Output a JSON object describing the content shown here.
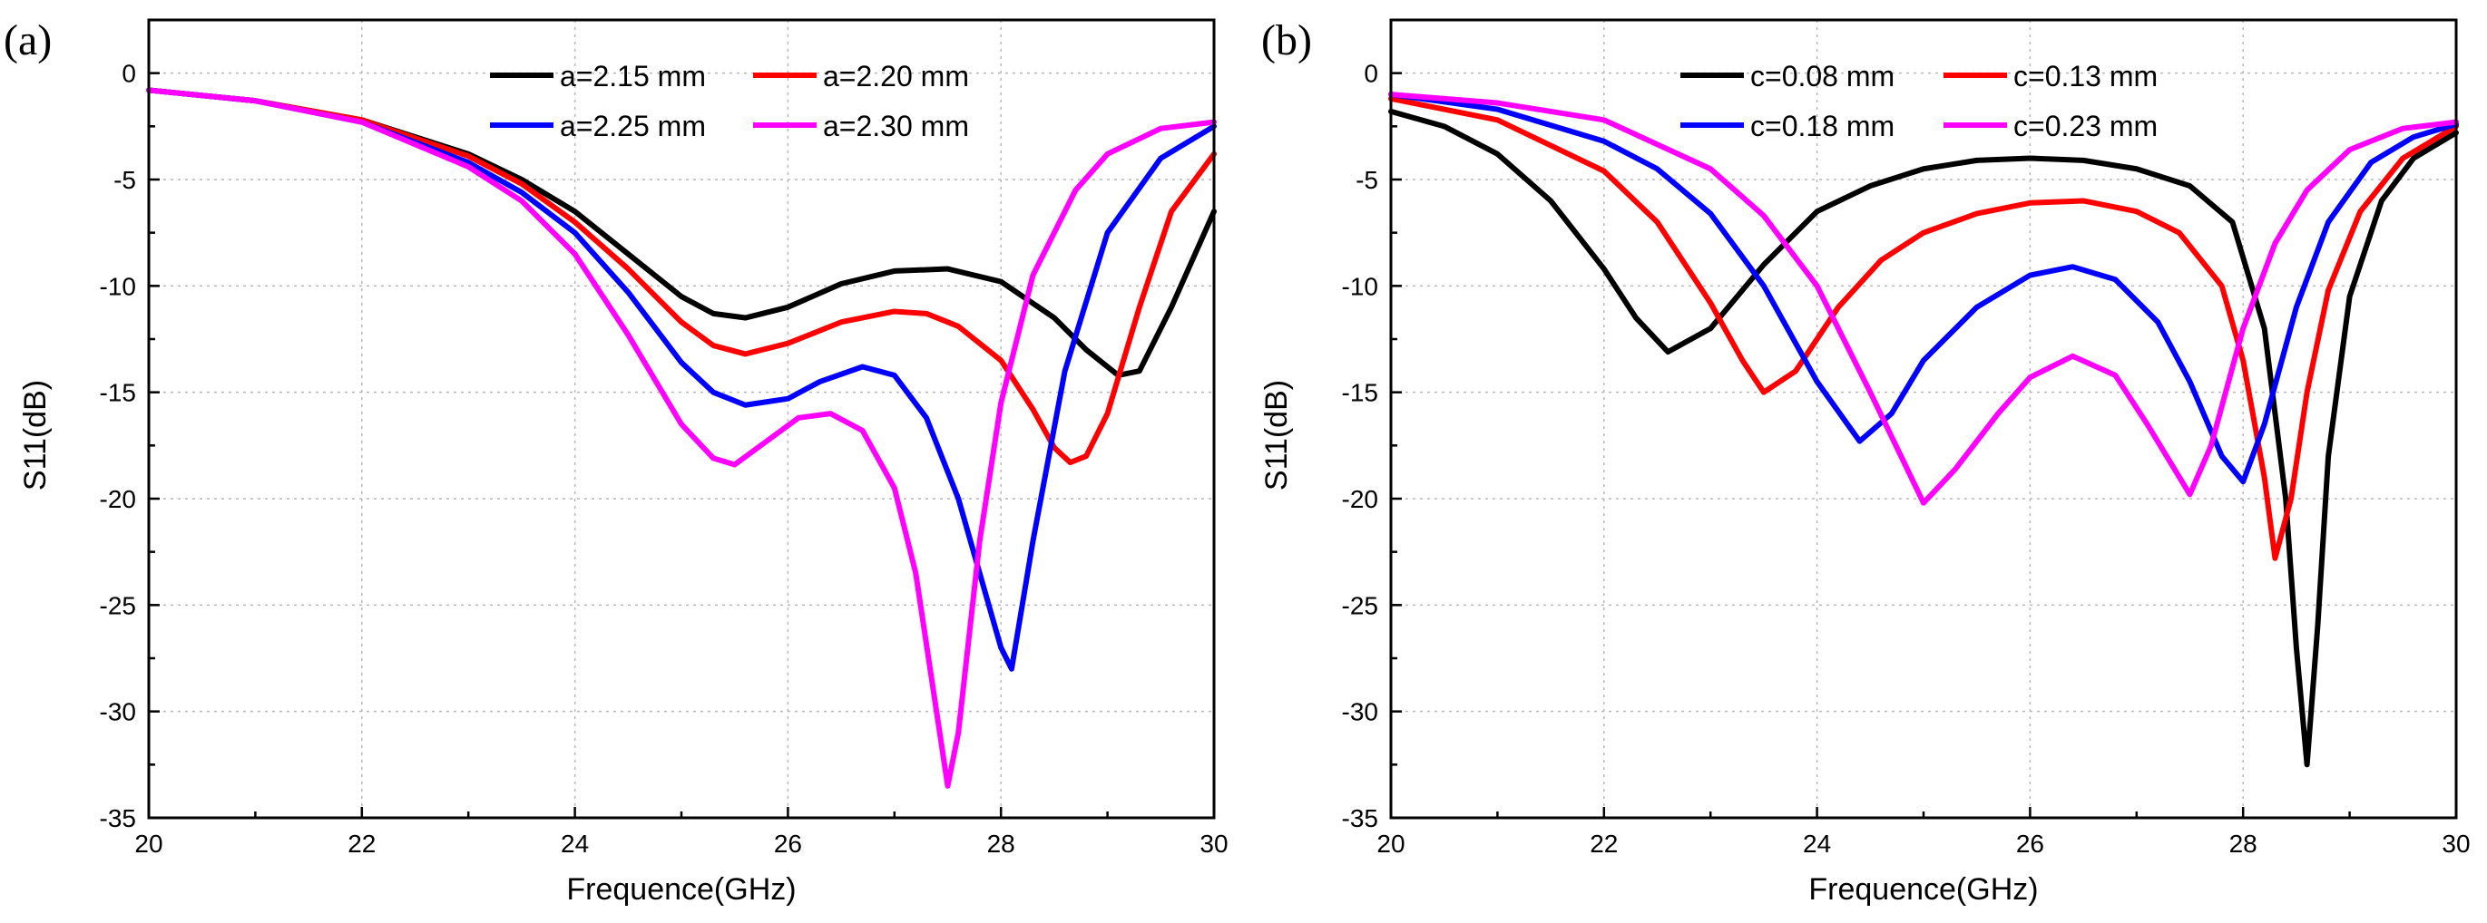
{
  "chart_data": [
    {
      "type": "line",
      "panel_label": "(a)",
      "xlabel": "Frequence(GHz)",
      "ylabel": "S11(dB)",
      "xlim": [
        20,
        30
      ],
      "ylim": [
        -35,
        2.5
      ],
      "xticks": [
        20,
        22,
        24,
        26,
        28,
        30
      ],
      "yticks": [
        0,
        -5,
        -10,
        -15,
        -20,
        -25,
        -30,
        -35
      ],
      "grid": true,
      "legend_position": "top-right",
      "series": [
        {
          "name": "a=2.15 mm",
          "color": "#000000",
          "x": [
            20,
            21,
            22,
            23,
            23.5,
            24,
            24.5,
            25,
            25.3,
            25.6,
            26,
            26.5,
            27,
            27.5,
            28,
            28.5,
            28.8,
            29.1,
            29.3,
            29.6,
            30
          ],
          "y": [
            -0.8,
            -1.3,
            -2.2,
            -3.8,
            -5,
            -6.5,
            -8.5,
            -10.5,
            -11.3,
            -11.5,
            -11,
            -9.9,
            -9.3,
            -9.2,
            -9.8,
            -11.5,
            -13,
            -14.2,
            -14,
            -11,
            -6.5
          ]
        },
        {
          "name": "a=2.20 mm",
          "color": "#ff0000",
          "x": [
            20,
            21,
            22,
            23,
            23.5,
            24,
            24.5,
            25,
            25.3,
            25.6,
            26,
            26.5,
            27,
            27.3,
            27.6,
            28,
            28.3,
            28.5,
            28.65,
            28.8,
            29,
            29.3,
            29.6,
            30
          ],
          "y": [
            -0.8,
            -1.3,
            -2.2,
            -3.9,
            -5.2,
            -7,
            -9.2,
            -11.7,
            -12.8,
            -13.2,
            -12.7,
            -11.7,
            -11.2,
            -11.3,
            -11.9,
            -13.5,
            -15.8,
            -17.6,
            -18.3,
            -18,
            -16,
            -11,
            -6.5,
            -3.8
          ]
        },
        {
          "name": "a=2.25 mm",
          "color": "#0000ff",
          "x": [
            20,
            21,
            22,
            23,
            23.5,
            24,
            24.5,
            25,
            25.3,
            25.6,
            26,
            26.3,
            26.7,
            27,
            27.3,
            27.6,
            27.8,
            28,
            28.1,
            28.3,
            28.6,
            29,
            29.5,
            30
          ],
          "y": [
            -0.8,
            -1.3,
            -2.3,
            -4.2,
            -5.6,
            -7.5,
            -10.3,
            -13.6,
            -15,
            -15.6,
            -15.3,
            -14.5,
            -13.8,
            -14.2,
            -16.2,
            -20,
            -23.5,
            -27,
            -28,
            -22,
            -14,
            -7.5,
            -4,
            -2.5
          ]
        },
        {
          "name": "a=2.30 mm",
          "color": "#ff00ff",
          "x": [
            20,
            21,
            22,
            23,
            23.5,
            24,
            24.5,
            25,
            25.3,
            25.5,
            25.8,
            26.1,
            26.4,
            26.7,
            27,
            27.2,
            27.35,
            27.5,
            27.6,
            27.8,
            28,
            28.3,
            28.7,
            29,
            29.5,
            30
          ],
          "y": [
            -0.8,
            -1.3,
            -2.3,
            -4.4,
            -6,
            -8.5,
            -12.3,
            -16.5,
            -18.1,
            -18.4,
            -17.3,
            -16.2,
            -16,
            -16.8,
            -19.5,
            -23.5,
            -28.5,
            -33.5,
            -31,
            -22,
            -15.5,
            -9.5,
            -5.5,
            -3.8,
            -2.6,
            -2.3
          ]
        }
      ]
    },
    {
      "type": "line",
      "panel_label": "(b)",
      "xlabel": "Frequence(GHz)",
      "ylabel": "S11(dB)",
      "xlim": [
        20,
        30
      ],
      "ylim": [
        -35,
        2.5
      ],
      "xticks": [
        20,
        22,
        24,
        26,
        28,
        30
      ],
      "yticks": [
        0,
        -5,
        -10,
        -15,
        -20,
        -25,
        -30,
        -35
      ],
      "grid": true,
      "legend_position": "top-right",
      "series": [
        {
          "name": "c=0.08 mm",
          "color": "#000000",
          "x": [
            20,
            20.5,
            21,
            21.5,
            22,
            22.3,
            22.6,
            23,
            23.5,
            24,
            24.5,
            25,
            25.5,
            26,
            26.5,
            27,
            27.5,
            27.9,
            28.2,
            28.4,
            28.5,
            28.6,
            28.7,
            28.8,
            29,
            29.3,
            29.6,
            30
          ],
          "y": [
            -1.8,
            -2.5,
            -3.8,
            -6,
            -9.2,
            -11.5,
            -13.1,
            -12,
            -9,
            -6.5,
            -5.3,
            -4.5,
            -4.1,
            -4,
            -4.1,
            -4.5,
            -5.3,
            -7,
            -12,
            -20,
            -27,
            -32.5,
            -26,
            -18,
            -10.5,
            -6,
            -4,
            -2.8
          ]
        },
        {
          "name": "c=0.13 mm",
          "color": "#ff0000",
          "x": [
            20,
            21,
            22,
            22.5,
            23,
            23.3,
            23.5,
            23.8,
            24.2,
            24.6,
            25,
            25.5,
            26,
            26.5,
            27,
            27.4,
            27.8,
            28,
            28.2,
            28.3,
            28.45,
            28.6,
            28.8,
            29.1,
            29.5,
            30
          ],
          "y": [
            -1.2,
            -2.2,
            -4.6,
            -7,
            -10.8,
            -13.5,
            -15,
            -14,
            -11,
            -8.8,
            -7.5,
            -6.6,
            -6.1,
            -6,
            -6.5,
            -7.5,
            -10,
            -13.5,
            -19,
            -22.8,
            -20,
            -15,
            -10.2,
            -6.5,
            -4,
            -2.5
          ]
        },
        {
          "name": "c=0.18 mm",
          "color": "#0000ff",
          "x": [
            20,
            21,
            22,
            22.5,
            23,
            23.5,
            24,
            24.4,
            24.7,
            25,
            25.5,
            26,
            26.4,
            26.8,
            27.2,
            27.5,
            27.8,
            28,
            28.2,
            28.5,
            28.8,
            29.2,
            29.6,
            30
          ],
          "y": [
            -1,
            -1.7,
            -3.2,
            -4.5,
            -6.6,
            -10,
            -14.5,
            -17.3,
            -16,
            -13.5,
            -11,
            -9.5,
            -9.1,
            -9.7,
            -11.7,
            -14.5,
            -18,
            -19.2,
            -16.5,
            -11,
            -7,
            -4.2,
            -3,
            -2.4
          ]
        },
        {
          "name": "c=0.23 mm",
          "color": "#ff00ff",
          "x": [
            20,
            21,
            22,
            23,
            23.5,
            24,
            24.5,
            25,
            25.3,
            25.7,
            26,
            26.4,
            26.8,
            27.1,
            27.5,
            27.7,
            28,
            28.3,
            28.6,
            29,
            29.5,
            30
          ],
          "y": [
            -1,
            -1.4,
            -2.2,
            -4.5,
            -6.7,
            -10,
            -15,
            -20.2,
            -18.6,
            -16,
            -14.3,
            -13.3,
            -14.2,
            -16.5,
            -19.8,
            -17.5,
            -12,
            -8,
            -5.5,
            -3.6,
            -2.6,
            -2.3
          ]
        }
      ]
    }
  ]
}
